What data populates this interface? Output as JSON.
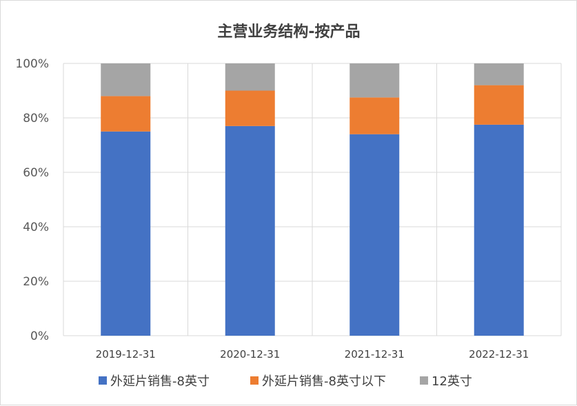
{
  "chart_data": {
    "type": "bar",
    "stacked": true,
    "percent_stacked": true,
    "title": "主营业务结构-按产品",
    "xlabel": "",
    "ylabel": "",
    "categories": [
      "2019-12-31",
      "2020-12-31",
      "2021-12-31",
      "2022-12-31"
    ],
    "series": [
      {
        "name": "外延片销售-8英寸",
        "color": "#4472C4",
        "values": [
          75,
          77,
          74,
          77.5
        ]
      },
      {
        "name": "外延片销售-8英寸以下",
        "color": "#ED7D31",
        "values": [
          13,
          13,
          13.5,
          14.5
        ]
      },
      {
        "name": "12英寸",
        "color": "#A5A5A5",
        "values": [
          12,
          10,
          12.5,
          8
        ]
      }
    ],
    "ylim": [
      0,
      100
    ],
    "yticks": [
      "0%",
      "20%",
      "40%",
      "60%",
      "80%",
      "100%"
    ],
    "grid": true,
    "legend": "bottom"
  }
}
